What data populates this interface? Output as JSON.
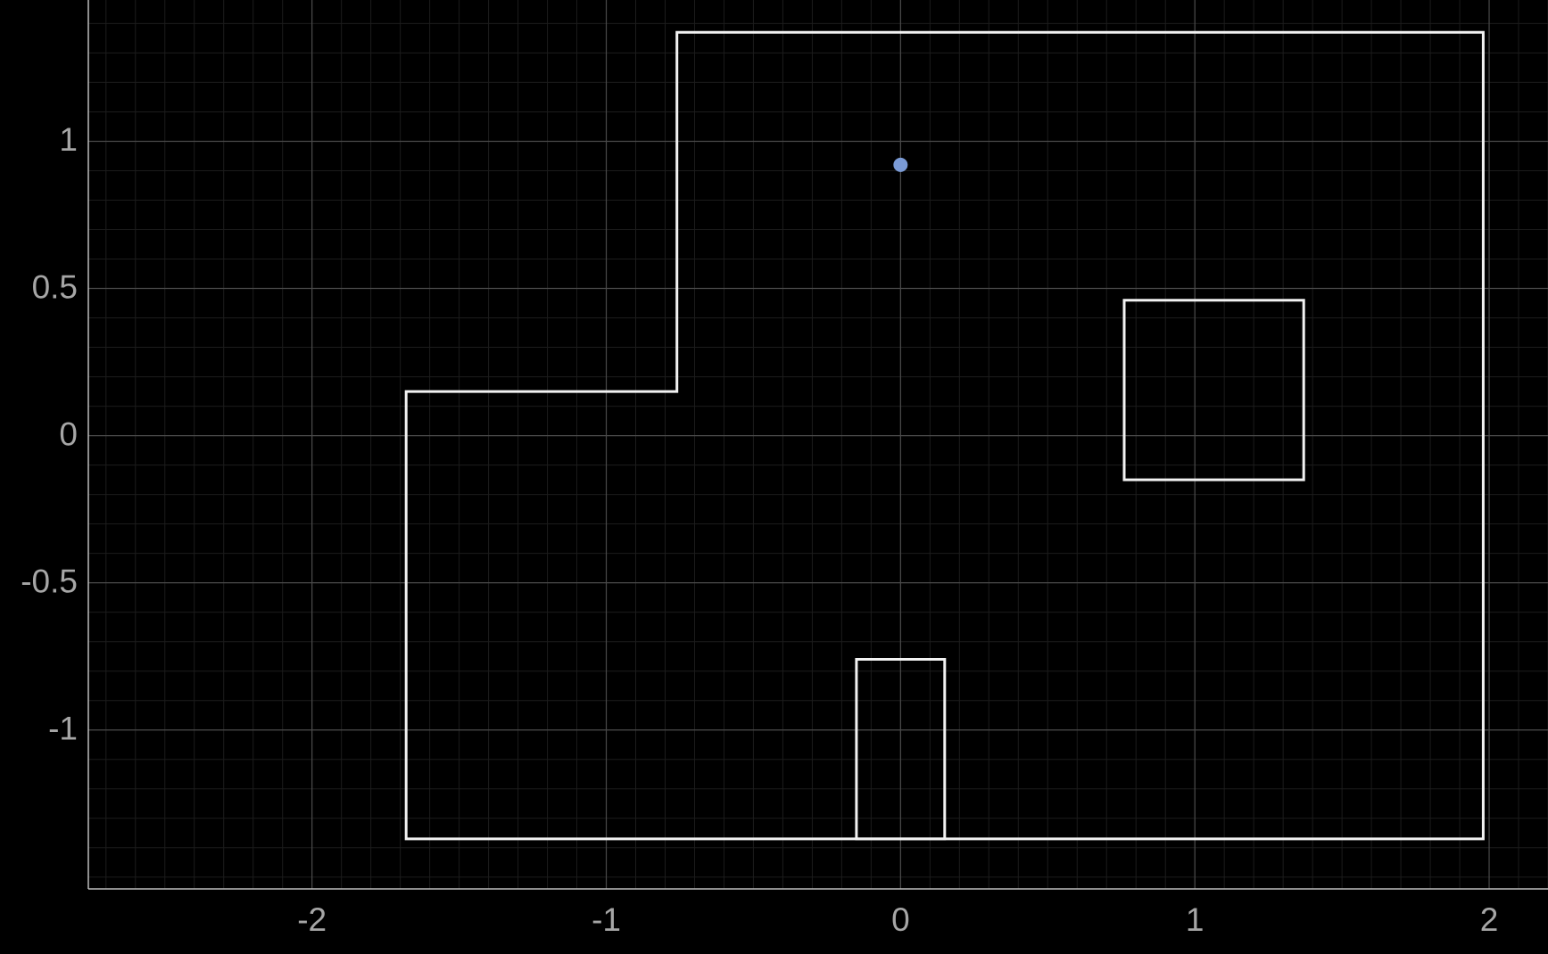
{
  "chart_data": {
    "type": "line",
    "title": "",
    "xlabel": "",
    "ylabel": "",
    "xlim": [
      -2.76,
      2.2
    ],
    "ylim": [
      -1.54,
      1.48
    ],
    "grid": true,
    "grid_minor_step": 0.1,
    "grid_major_step_x": 1,
    "grid_major_step_y": 0.5,
    "x_ticks": [
      {
        "value": -2,
        "label": "-2"
      },
      {
        "value": -1,
        "label": "-1"
      },
      {
        "value": 0,
        "label": "0"
      },
      {
        "value": 1,
        "label": "1"
      },
      {
        "value": 2,
        "label": "2"
      }
    ],
    "y_ticks": [
      {
        "value": 1,
        "label": "1"
      },
      {
        "value": 0.5,
        "label": "0.5"
      },
      {
        "value": 0,
        "label": "0"
      },
      {
        "value": -0.5,
        "label": "-0.5"
      },
      {
        "value": -1,
        "label": "-1"
      }
    ],
    "series": [
      {
        "name": "outer-boundary",
        "closed": true,
        "points": [
          [
            -0.76,
            1.37
          ],
          [
            1.98,
            1.37
          ],
          [
            1.98,
            -1.37
          ],
          [
            -1.68,
            -1.37
          ],
          [
            -1.68,
            0.15
          ],
          [
            -0.76,
            0.15
          ]
        ]
      },
      {
        "name": "square-obstacle",
        "closed": true,
        "points": [
          [
            0.76,
            0.46
          ],
          [
            1.37,
            0.46
          ],
          [
            1.37,
            -0.15
          ],
          [
            0.76,
            -0.15
          ]
        ]
      },
      {
        "name": "doorway-obstacle",
        "closed": true,
        "points": [
          [
            -0.15,
            -0.76
          ],
          [
            0.15,
            -0.76
          ],
          [
            0.15,
            -1.37
          ],
          [
            -0.15,
            -1.37
          ]
        ]
      }
    ],
    "points": [
      {
        "name": "robot-position",
        "x": 0,
        "y": 0.92
      }
    ],
    "colors": {
      "background": "#000000",
      "outline": "#f2f2f2",
      "marker": "#7b9bd6",
      "minor_grid": "#1c1c1c",
      "major_grid": "#4a4a4a",
      "axis": "#bdbdbd",
      "tick_label": "#a6a6a6"
    }
  }
}
